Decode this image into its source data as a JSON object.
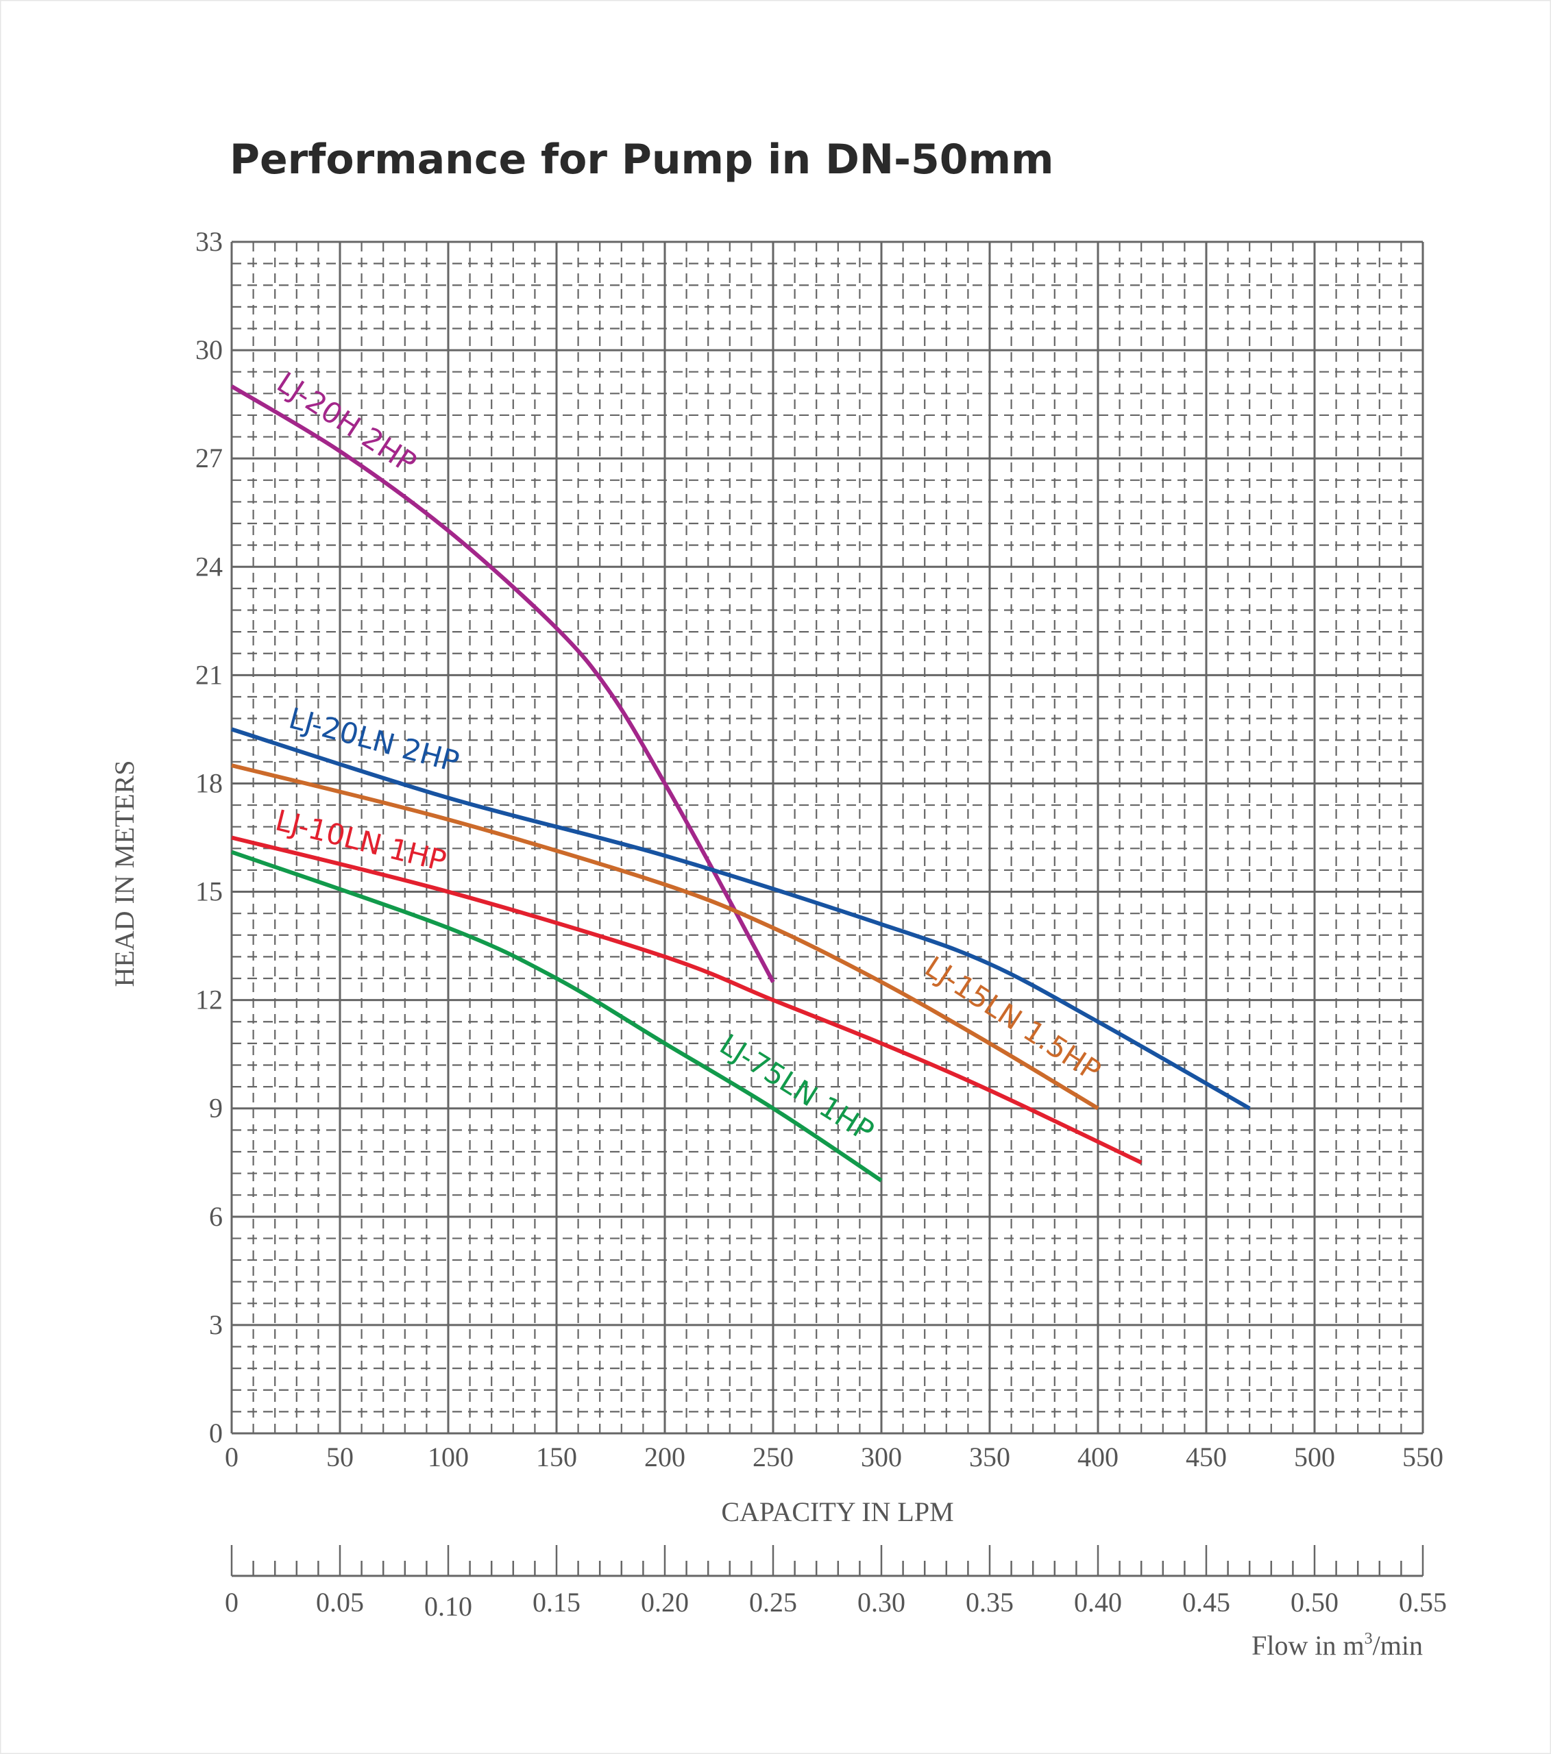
{
  "chart_data": {
    "type": "line",
    "title": "Performance for Pump in DN-50mm",
    "xlabel": "CAPACITY IN LPM",
    "ylabel": "HEAD IN METERS",
    "secondary_xlabel": "Flow in m³/min",
    "xlim": [
      0,
      550
    ],
    "ylim": [
      0,
      33
    ],
    "x_ticks": [
      "0",
      "50",
      "100",
      "150",
      "200",
      "250",
      "300",
      "350",
      "400",
      "450",
      "500",
      "550"
    ],
    "y_ticks": [
      "0",
      "3",
      "6",
      "9",
      "12",
      "15",
      "18",
      "21",
      "24",
      "27",
      "30",
      "33"
    ],
    "secondary_x_ticks": [
      "0",
      "0.05",
      "0.10",
      "0.15",
      "0.20",
      "0.25",
      "0.30",
      "0.35",
      "0.40",
      "0.45",
      "0.50",
      "0.55"
    ],
    "grid": true,
    "series": [
      {
        "name": "LJ-20H 2HP",
        "color": "#a3268a",
        "x": [
          0,
          50,
          100,
          150,
          175,
          200,
          225,
          250
        ],
        "y": [
          29,
          27.2,
          25,
          22.3,
          20.5,
          18,
          15.3,
          12.5
        ]
      },
      {
        "name": "LJ-20LN 2HP",
        "color": "#1753a1",
        "x": [
          0,
          100,
          200,
          300,
          350,
          400,
          470
        ],
        "y": [
          19.5,
          17.6,
          16,
          14.1,
          13,
          11.4,
          9
        ]
      },
      {
        "name": "LJ-15LN 1.5HP",
        "color": "#cc6a2a",
        "x": [
          0,
          100,
          200,
          250,
          300,
          350,
          400
        ],
        "y": [
          18.5,
          17,
          15.2,
          14,
          12.5,
          10.8,
          9
        ]
      },
      {
        "name": "LJ-10LN 1HP",
        "color": "#e3202e",
        "x": [
          0,
          100,
          200,
          250,
          300,
          350,
          420
        ],
        "y": [
          16.5,
          15,
          13.2,
          12,
          10.8,
          9.5,
          7.5
        ]
      },
      {
        "name": "LJ-75LN 1HP",
        "color": "#119a4b",
        "x": [
          0,
          100,
          150,
          200,
          250,
          300
        ],
        "y": [
          16.1,
          14,
          12.6,
          10.8,
          9,
          7
        ]
      }
    ]
  }
}
